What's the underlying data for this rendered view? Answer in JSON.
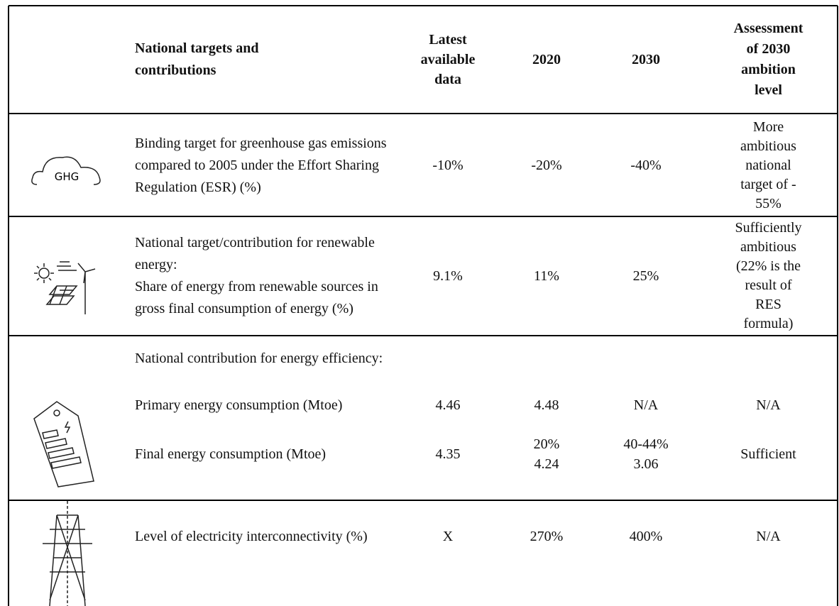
{
  "header": {
    "label": "National targets and contributions",
    "latest": "Latest\navailable\ndata",
    "y2020": "2020",
    "y2030": "2030",
    "assessment": "Assessment\nof 2030\nambition\nlevel"
  },
  "icons": {
    "ghg": "GHG"
  },
  "rows": [
    {
      "label": "Binding target for greenhouse gas emissions compared to 2005 under the Effort Sharing Regulation (ESR) (%)",
      "latest": "-10%",
      "y2020": "-20%",
      "y2030": "-40%",
      "assessment": "More\nambitious\nnational\ntarget of -\n55%"
    },
    {
      "label": "National target/contribution for renewable energy:",
      "sublabel": "Share of energy from renewable sources in gross final consumption of energy (%)",
      "latest": "9.1%",
      "y2020": "11%",
      "y2030": "25%",
      "assessment": "Sufficiently\nambitious\n(22% is the\nresult of\nRES\nformula)"
    },
    {
      "label": "National contribution for energy efficiency:",
      "subrows": [
        {
          "label": "Primary energy consumption (Mtoe)",
          "latest": "4.46",
          "y2020": "4.48",
          "y2030": "N/A",
          "assessment": "N/A"
        },
        {
          "label": "Final energy consumption (Mtoe)",
          "latest": "4.35",
          "y2020": "20%\n4.24",
          "y2030": "40-44%\n3.06",
          "assessment": "Sufficient"
        }
      ]
    },
    {
      "label": "Level of electricity interconnectivity (%)",
      "latest": "X",
      "y2020": "270%",
      "y2030": "400%",
      "assessment": "N/A"
    }
  ]
}
